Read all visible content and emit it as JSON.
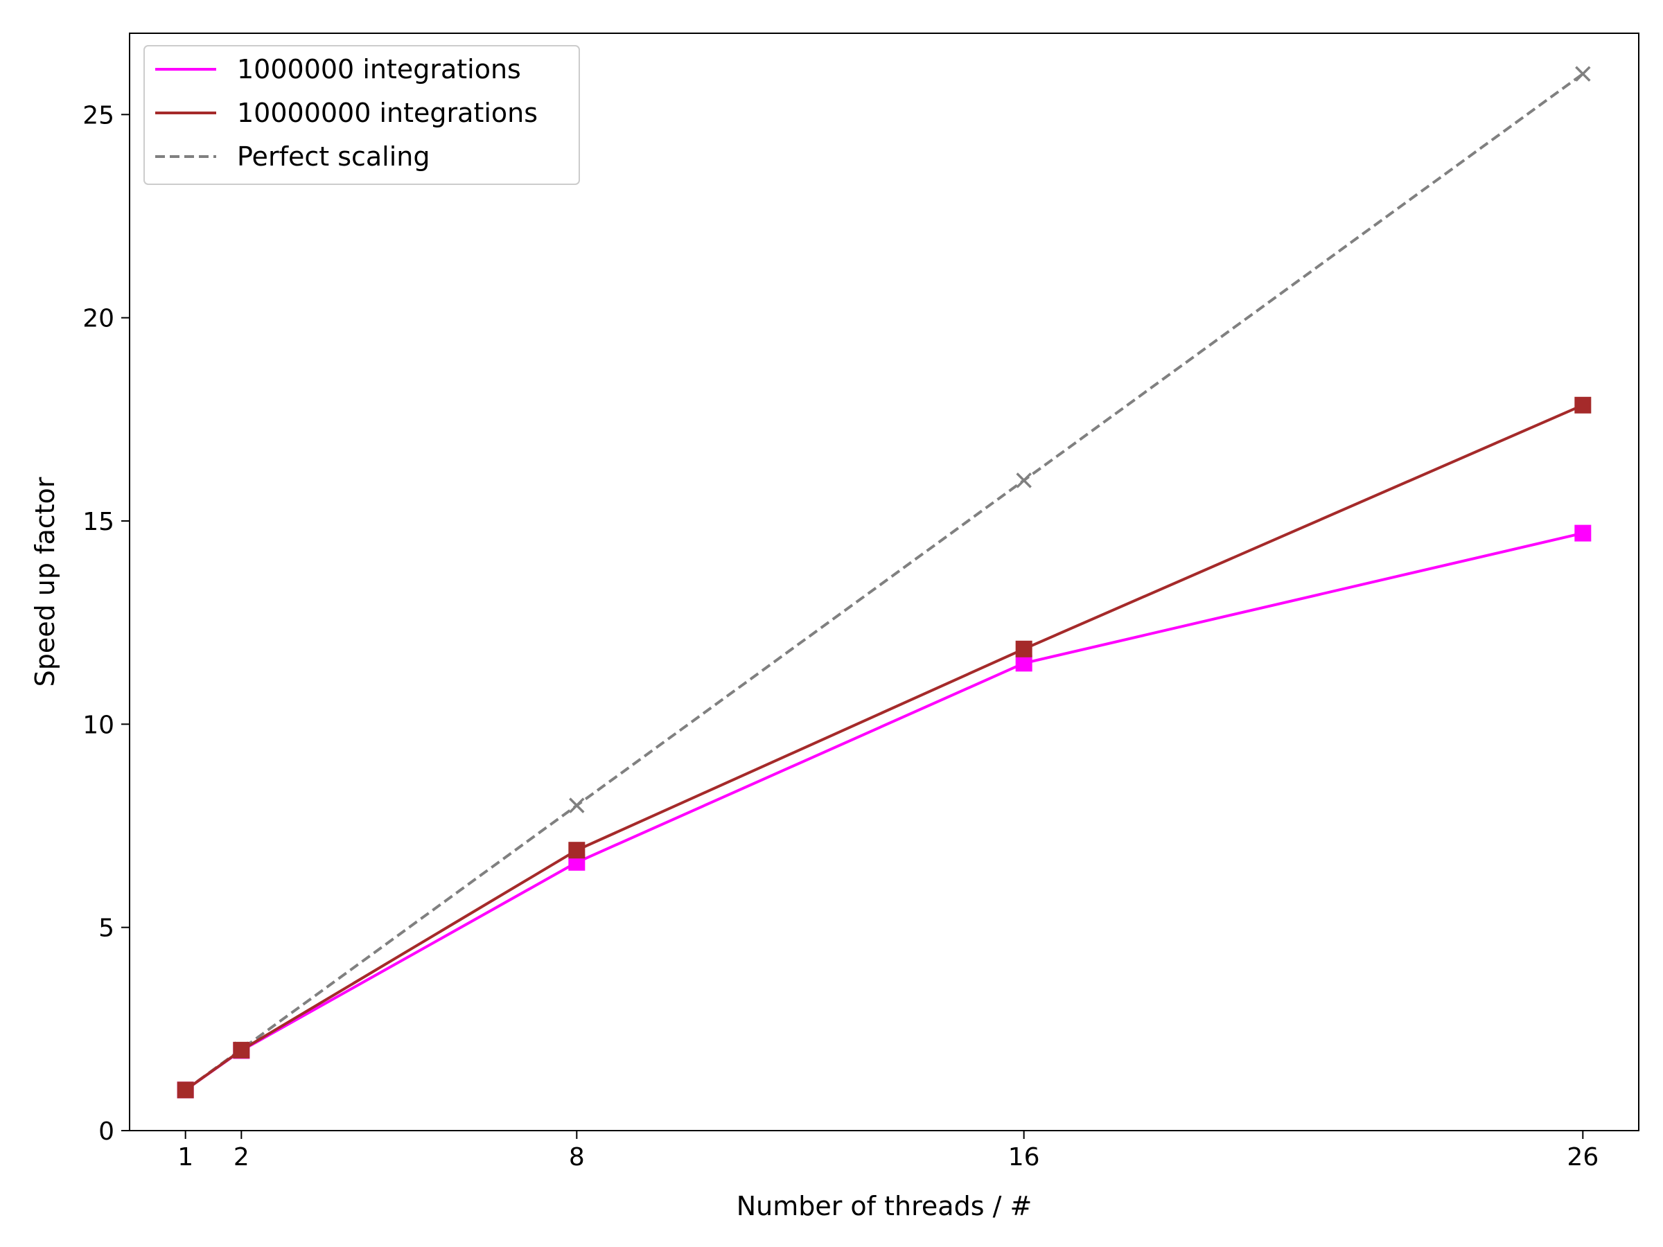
{
  "chart_data": {
    "type": "line",
    "title": "",
    "xlabel": "Number of threads / #",
    "ylabel": "Speed up factor",
    "xlim": [
      0,
      27
    ],
    "ylim": [
      0,
      27
    ],
    "xticks": [
      1,
      2,
      8,
      16,
      26
    ],
    "yticks": [
      0,
      5,
      10,
      15,
      20,
      25
    ],
    "grid": false,
    "legend_position": "top-left",
    "x": [
      1,
      2,
      8,
      16,
      26
    ],
    "series": [
      {
        "name": "1000000 integrations",
        "values": [
          1,
          1.97,
          6.6,
          11.5,
          14.7
        ],
        "color": "#ff00ff",
        "marker": "square",
        "linestyle": "solid"
      },
      {
        "name": "10000000 integrations",
        "values": [
          1,
          1.98,
          6.9,
          11.85,
          17.85
        ],
        "color": "#a52a2a",
        "marker": "square",
        "linestyle": "solid"
      },
      {
        "name": "Perfect scaling",
        "values": [
          1,
          2,
          8,
          16,
          26
        ],
        "color": "#808080",
        "marker": "x",
        "linestyle": "dashed"
      }
    ]
  }
}
